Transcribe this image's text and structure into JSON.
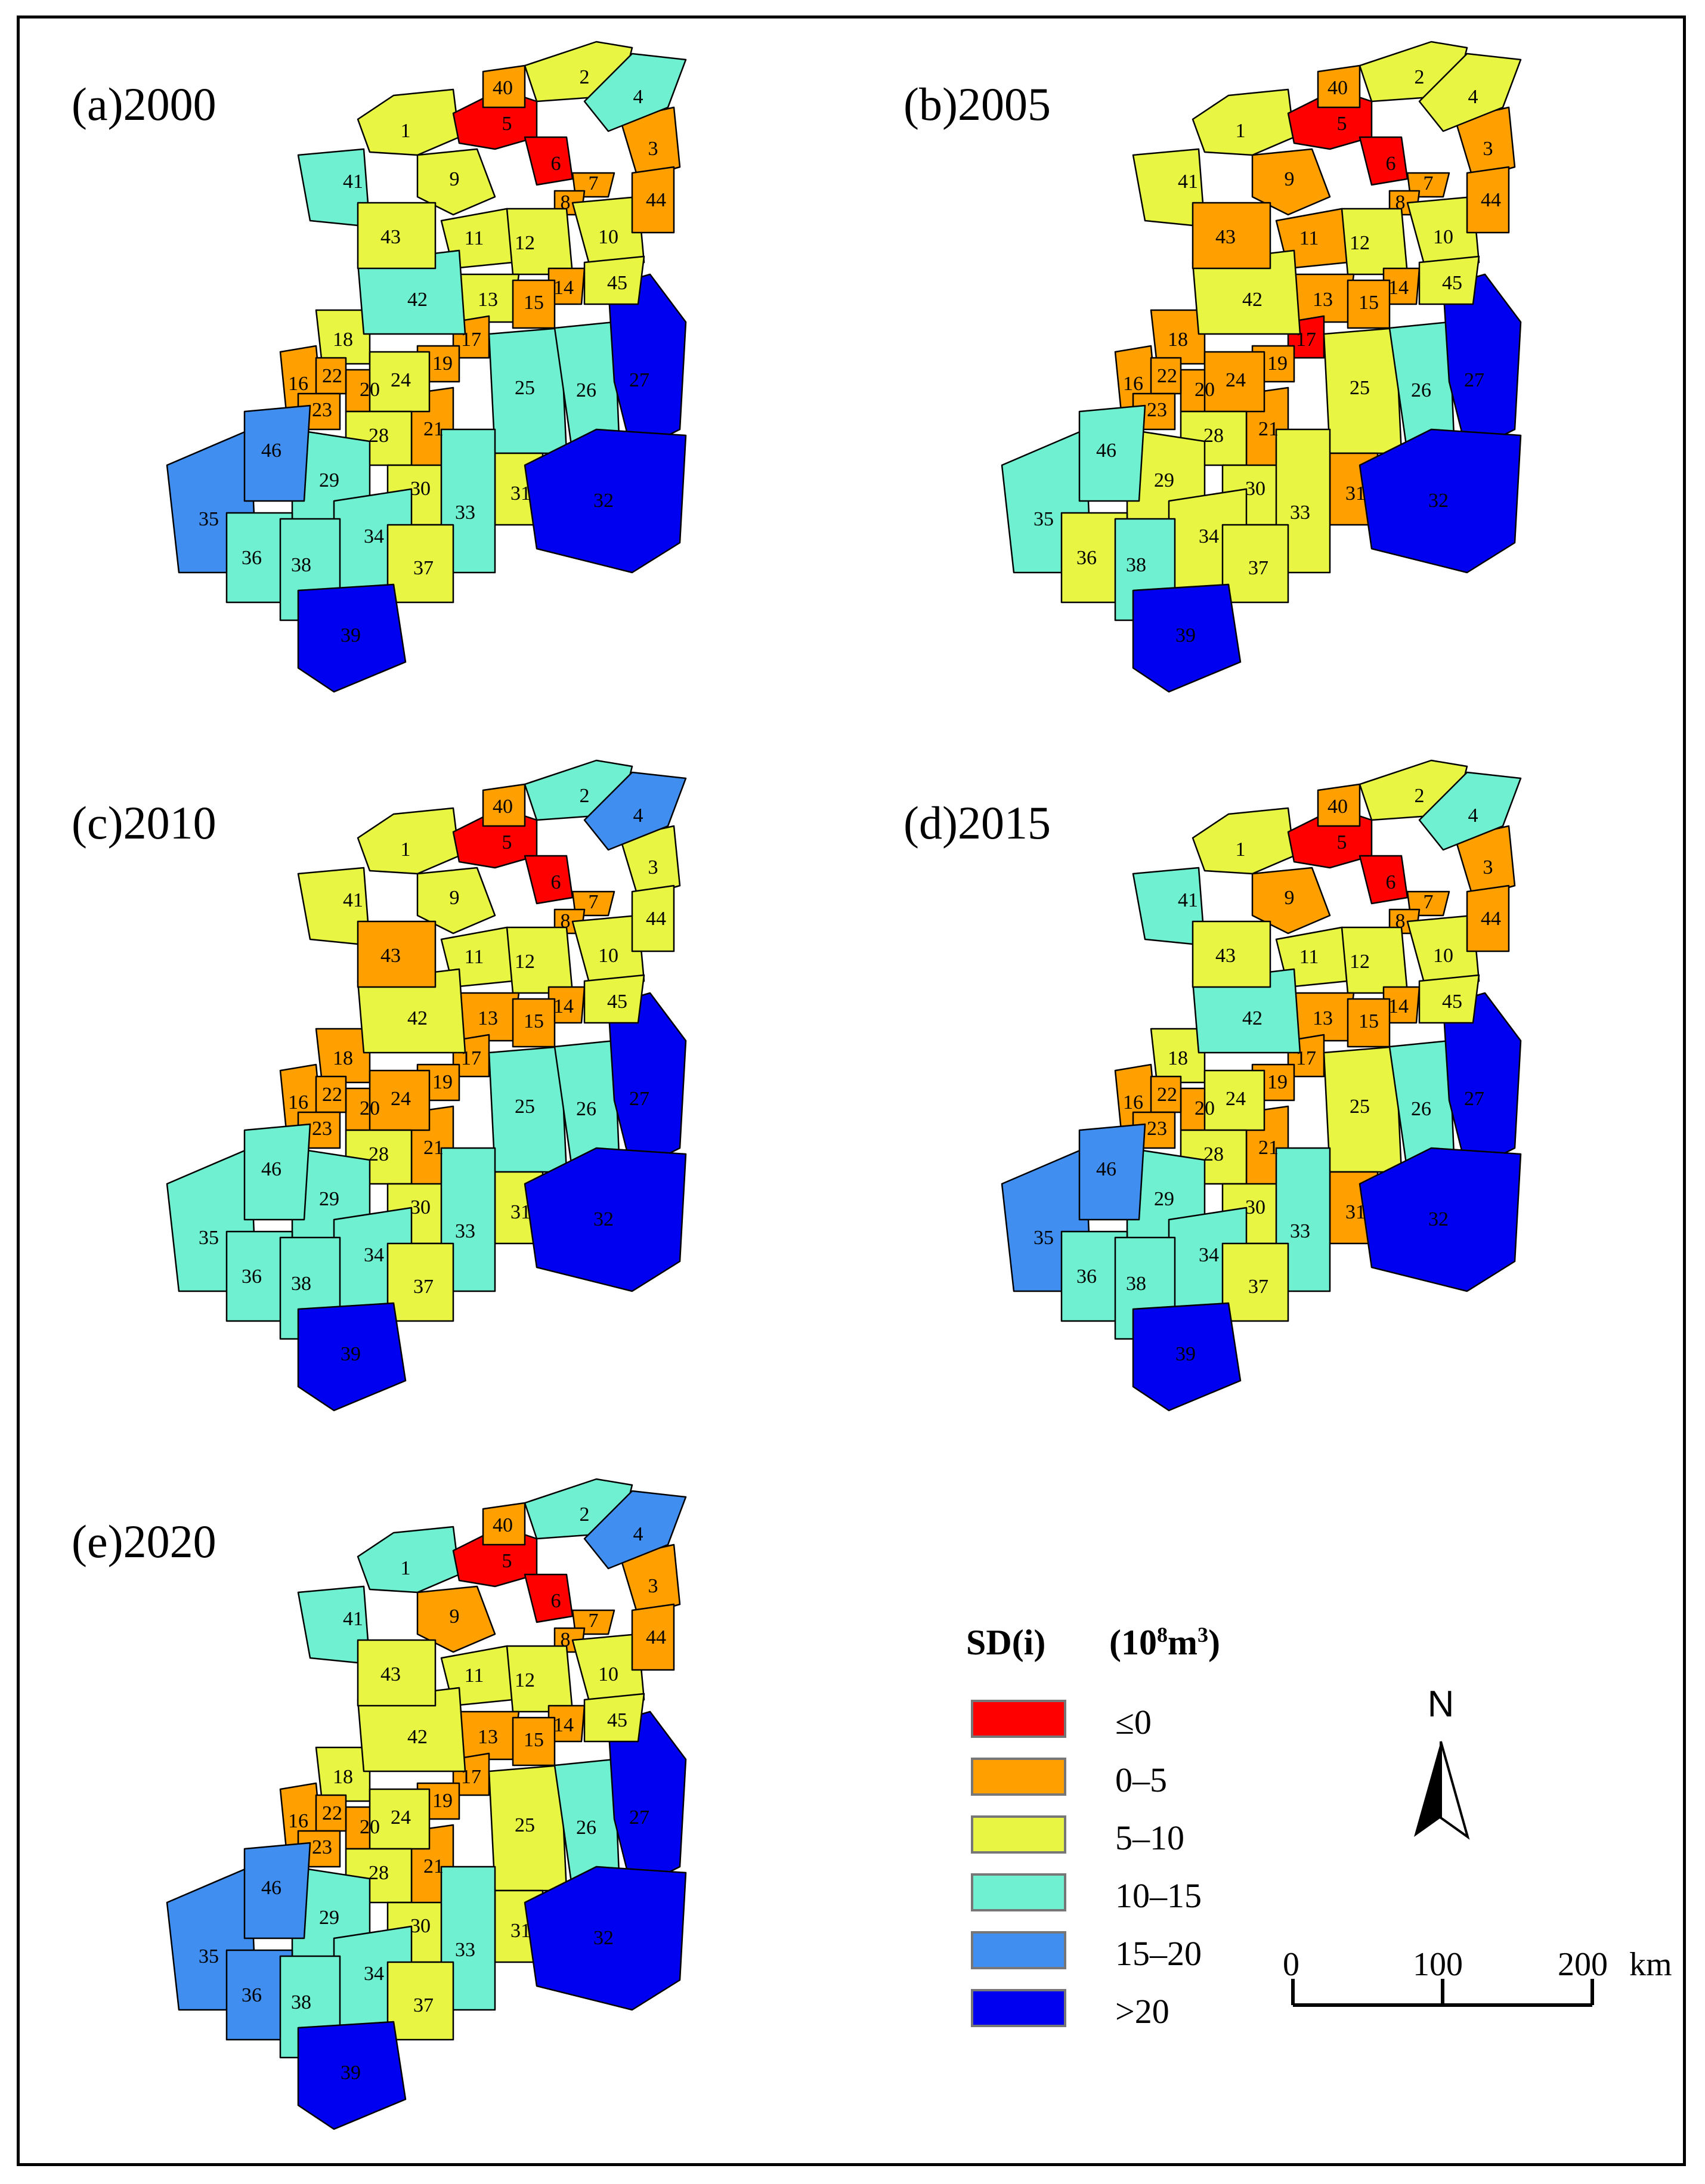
{
  "legend": {
    "title": "SD(i)",
    "unit_prefix": "(10",
    "unit_exp1": "8",
    "unit_mid": "m",
    "unit_exp2": "3",
    "unit_suffix": ")",
    "classes": [
      {
        "label": "≤0",
        "color": "#ff0000"
      },
      {
        "label": "0–5",
        "color": "#ffa000"
      },
      {
        "label": "5–10",
        "color": "#e8f543"
      },
      {
        "label": "10–15",
        "color": "#6ff0d0"
      },
      {
        "label": "15–20",
        "color": "#3f8ef0"
      },
      {
        "label": ">20",
        "color": "#0000f0"
      }
    ]
  },
  "north_arrow": {
    "label": "N"
  },
  "scale_bar": {
    "ticks": [
      "0",
      "100",
      "200"
    ],
    "unit": "km"
  },
  "region_ids": [
    "1",
    "2",
    "3",
    "4",
    "5",
    "6",
    "7",
    "8",
    "9",
    "10",
    "11",
    "12",
    "13",
    "14",
    "15",
    "16",
    "17",
    "18",
    "19",
    "20",
    "21",
    "22",
    "23",
    "24",
    "25",
    "26",
    "27",
    "28",
    "29",
    "30",
    "31",
    "32",
    "33",
    "34",
    "35",
    "36",
    "37",
    "38",
    "39",
    "40",
    "41",
    "42",
    "43",
    "44",
    "45",
    "46"
  ],
  "panels": [
    {
      "label": "(a)2000",
      "classes": {
        "1": "5–10",
        "2": "5–10",
        "3": "0–5",
        "4": "10–15",
        "5": "≤0",
        "6": "≤0",
        "7": "0–5",
        "8": "0–5",
        "9": "5–10",
        "10": "5–10",
        "11": "5–10",
        "12": "5–10",
        "13": "5–10",
        "14": "0–5",
        "15": "0–5",
        "16": "0–5",
        "17": "0–5",
        "18": "5–10",
        "19": "0–5",
        "20": "0–5",
        "21": "0–5",
        "22": "0–5",
        "23": "0–5",
        "24": "5–10",
        "25": "10–15",
        "26": "10–15",
        "27": ">20",
        "28": "5–10",
        "29": "10–15",
        "30": "5–10",
        "31": "5–10",
        "32": ">20",
        "33": "10–15",
        "34": "10–15",
        "35": "15–20",
        "36": "10–15",
        "37": "5–10",
        "38": "10–15",
        "39": ">20",
        "40": "0–5",
        "41": "10–15",
        "42": "10–15",
        "43": "5–10",
        "44": "0–5",
        "45": "5–10",
        "46": "15–20"
      }
    },
    {
      "label": "(b)2005",
      "classes": {
        "1": "5–10",
        "2": "5–10",
        "3": "0–5",
        "4": "5–10",
        "5": "≤0",
        "6": "≤0",
        "7": "0–5",
        "8": "0–5",
        "9": "0–5",
        "10": "5–10",
        "11": "0–5",
        "12": "5–10",
        "13": "0–5",
        "14": "0–5",
        "15": "0–5",
        "16": "0–5",
        "17": "≤0",
        "18": "0–5",
        "19": "0–5",
        "20": "0–5",
        "21": "0–5",
        "22": "0–5",
        "23": "0–5",
        "24": "0–5",
        "25": "5–10",
        "26": "10–15",
        "27": ">20",
        "28": "5–10",
        "29": "5–10",
        "30": "5–10",
        "31": "0–5",
        "32": ">20",
        "33": "5–10",
        "34": "5–10",
        "35": "10–15",
        "36": "5–10",
        "37": "5–10",
        "38": "10–15",
        "39": ">20",
        "40": "0–5",
        "41": "5–10",
        "42": "5–10",
        "43": "0–5",
        "44": "0–5",
        "45": "5–10",
        "46": "10–15"
      }
    },
    {
      "label": "(c)2010",
      "classes": {
        "1": "5–10",
        "2": "10–15",
        "3": "5–10",
        "4": "15–20",
        "5": "≤0",
        "6": "≤0",
        "7": "0–5",
        "8": "0–5",
        "9": "5–10",
        "10": "5–10",
        "11": "5–10",
        "12": "5–10",
        "13": "0–5",
        "14": "0–5",
        "15": "0–5",
        "16": "0–5",
        "17": "0–5",
        "18": "0–5",
        "19": "0–5",
        "20": "0–5",
        "21": "0–5",
        "22": "0–5",
        "23": "0–5",
        "24": "0–5",
        "25": "10–15",
        "26": "10–15",
        "27": ">20",
        "28": "5–10",
        "29": "10–15",
        "30": "5–10",
        "31": "5–10",
        "32": ">20",
        "33": "10–15",
        "34": "10–15",
        "35": "10–15",
        "36": "10–15",
        "37": "5–10",
        "38": "10–15",
        "39": ">20",
        "40": "0–5",
        "41": "5–10",
        "42": "5–10",
        "43": "0–5",
        "44": "5–10",
        "45": "5–10",
        "46": "10–15"
      }
    },
    {
      "label": "(d)2015",
      "classes": {
        "1": "5–10",
        "2": "5–10",
        "3": "0–5",
        "4": "10–15",
        "5": "≤0",
        "6": "≤0",
        "7": "0–5",
        "8": "0–5",
        "9": "0–5",
        "10": "5–10",
        "11": "5–10",
        "12": "5–10",
        "13": "0–5",
        "14": "0–5",
        "15": "0–5",
        "16": "0–5",
        "17": "0–5",
        "18": "5–10",
        "19": "0–5",
        "20": "0–5",
        "21": "0–5",
        "22": "0–5",
        "23": "0–5",
        "24": "5–10",
        "25": "5–10",
        "26": "10–15",
        "27": ">20",
        "28": "5–10",
        "29": "10–15",
        "30": "5–10",
        "31": "0–5",
        "32": ">20",
        "33": "10–15",
        "34": "10–15",
        "35": "15–20",
        "36": "10–15",
        "37": "5–10",
        "38": "10–15",
        "39": ">20",
        "40": "0–5",
        "41": "10–15",
        "42": "10–15",
        "43": "5–10",
        "44": "0–5",
        "45": "5–10",
        "46": "15–20"
      }
    },
    {
      "label": "(e)2020",
      "classes": {
        "1": "10–15",
        "2": "10–15",
        "3": "0–5",
        "4": "15–20",
        "5": "≤0",
        "6": "≤0",
        "7": "0–5",
        "8": "0–5",
        "9": "0–5",
        "10": "5–10",
        "11": "5–10",
        "12": "5–10",
        "13": "0–5",
        "14": "0–5",
        "15": "0–5",
        "16": "0–5",
        "17": "0–5",
        "18": "5–10",
        "19": "0–5",
        "20": "0–5",
        "21": "0–5",
        "22": "0–5",
        "23": "0–5",
        "24": "5–10",
        "25": "5–10",
        "26": "10–15",
        "27": ">20",
        "28": "5–10",
        "29": "10–15",
        "30": "5–10",
        "31": "5–10",
        "32": ">20",
        "33": "10–15",
        "34": "10–15",
        "35": "15–20",
        "36": "15–20",
        "37": "5–10",
        "38": "10–15",
        "39": ">20",
        "40": "0–5",
        "41": "10–15",
        "42": "5–10",
        "43": "5–10",
        "44": "0–5",
        "45": "5–10",
        "46": "15–20"
      }
    }
  ]
}
